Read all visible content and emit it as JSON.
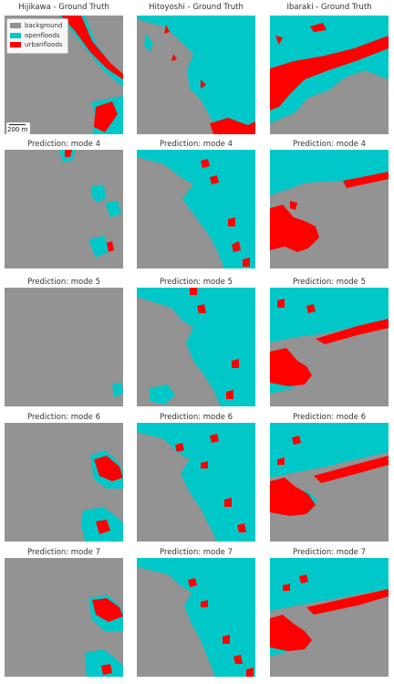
{
  "figure": {
    "columns": [
      "Hijikawa - Ground Truth",
      "Hitoyoshi - Ground Truth",
      "Ibaraki - Ground Truth"
    ],
    "rows": [
      {
        "title": null
      },
      {
        "title": "Prediction: mode 4"
      },
      {
        "title": "Prediction: mode 5"
      },
      {
        "title": "Prediction: mode 6"
      },
      {
        "title": "Prediction: mode 7"
      }
    ],
    "legend": [
      {
        "label": "background",
        "color": "#939393"
      },
      {
        "label": "openfloods",
        "color": "#00c8c8"
      },
      {
        "label": "urbanfloods",
        "color": "#ff0000"
      }
    ],
    "scale_bar": "200 m"
  },
  "colors": {
    "background": "#939393",
    "openfloods": "#00c8c8",
    "urbanfloods": "#ff0000"
  }
}
